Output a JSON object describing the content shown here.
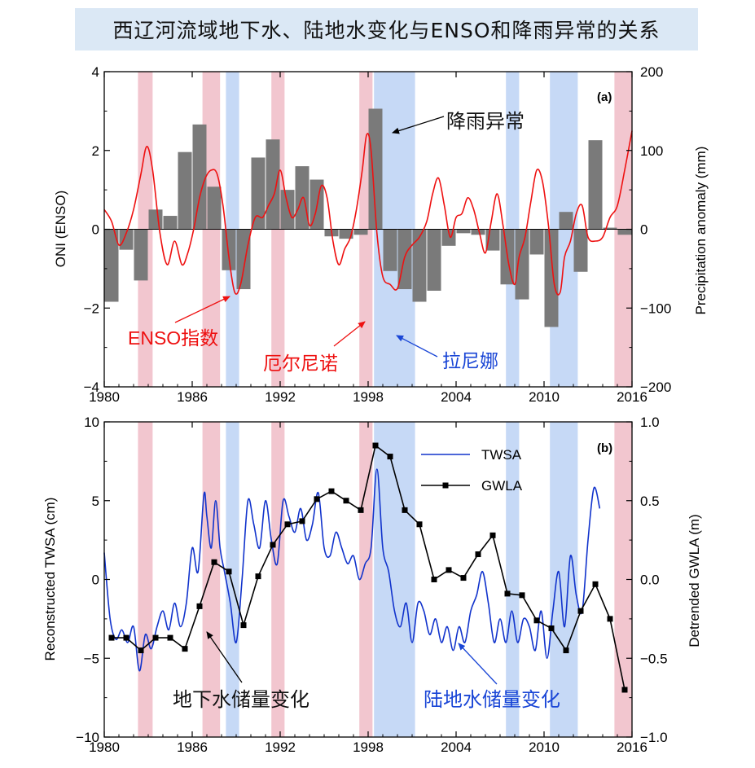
{
  "title": "西辽河流域地下水、陆地水变化与ENSO和降雨异常的关系",
  "colors": {
    "elnino": "#f2c6cf",
    "lanina": "#c6d9f6",
    "oni": "#ee1111",
    "precip": "#7a7a7a",
    "twsa": "#1133cc",
    "gwla": "#000000",
    "blue_text": "#1a46d6",
    "red_text": "#ee1111"
  },
  "shading": {
    "el_nino_periods": [
      [
        1982.3,
        1983.3
      ],
      [
        1986.7,
        1987.9
      ],
      [
        1991.4,
        1992.3
      ],
      [
        1997.4,
        1998.3
      ],
      [
        2014.8,
        2016.0
      ]
    ],
    "la_nina_periods": [
      [
        1988.3,
        1989.2
      ],
      [
        1998.4,
        2001.2
      ],
      [
        2007.4,
        2008.3
      ],
      [
        2010.4,
        2012.3
      ]
    ]
  },
  "chart_data": [
    {
      "type": "bar",
      "panel_label": "(a)",
      "ylabel_left": "ONI (ENSO)",
      "ylabel_right": "Precipitation anomaly (mm)",
      "xlim": [
        1980,
        2016
      ],
      "ylim_left": [
        -4,
        4
      ],
      "ylim_right": [
        -200,
        200
      ],
      "x_ticks": [
        "1980",
        "1986",
        "1992",
        "1998",
        "2004",
        "2010",
        "2016"
      ],
      "y_ticks_left": [
        "4",
        "2",
        "0",
        "−2",
        "−4"
      ],
      "y_ticks_right": [
        "200",
        "100",
        "0",
        "−100",
        "−200"
      ],
      "annotations": {
        "precip": "降雨异常",
        "oni": "ENSO指数",
        "elnino": "厄尔尼诺",
        "lanina": "拉尼娜"
      },
      "precip_years": [
        1980,
        1981,
        1982,
        1983,
        1984,
        1985,
        1986,
        1987,
        1988,
        1989,
        1990,
        1991,
        1992,
        1993,
        1994,
        1995,
        1996,
        1997,
        1998,
        1999,
        2000,
        2001,
        2002,
        2003,
        2004,
        2005,
        2006,
        2007,
        2008,
        2009,
        2010,
        2011,
        2012,
        2013,
        2014,
        2015
      ],
      "precip_values": [
        -92,
        -26,
        -65,
        25,
        17,
        98,
        133,
        54,
        -52,
        -76,
        91,
        114,
        50,
        80,
        63,
        -9,
        -12,
        -7,
        153,
        -53,
        -76,
        -92,
        -78,
        -21,
        -5,
        -7,
        -27,
        -70,
        -89,
        -32,
        -124,
        22,
        -54,
        113,
        2,
        -7
      ],
      "oni_x": [
        1980.0,
        1980.5,
        1981.0,
        1981.5,
        1982.0,
        1982.5,
        1982.9,
        1983.3,
        1983.8,
        1984.3,
        1984.8,
        1985.3,
        1985.7,
        1986.1,
        1986.5,
        1986.9,
        1987.3,
        1987.7,
        1988.1,
        1988.5,
        1988.9,
        1989.3,
        1989.8,
        1990.3,
        1990.8,
        1991.2,
        1991.6,
        1992.0,
        1992.4,
        1992.8,
        1993.2,
        1993.6,
        1994.0,
        1994.4,
        1994.8,
        1995.2,
        1995.6,
        1996.0,
        1996.4,
        1996.8,
        1997.2,
        1997.6,
        1997.9,
        1998.2,
        1998.6,
        1999.0,
        1999.5,
        2000.0,
        2000.5,
        2001.0,
        2001.5,
        2002.0,
        2002.4,
        2002.8,
        2003.2,
        2003.6,
        2004.0,
        2004.4,
        2004.8,
        2005.2,
        2005.6,
        2006.0,
        2006.4,
        2006.8,
        2007.2,
        2007.6,
        2008.0,
        2008.3,
        2008.7,
        2009.1,
        2009.5,
        2009.9,
        2010.3,
        2010.7,
        2011.1,
        2011.4,
        2011.8,
        2012.2,
        2012.6,
        2013.0,
        2013.5,
        2014.0,
        2014.5,
        2015.0,
        2015.5,
        2016.0
      ],
      "oni_values": [
        0.5,
        0.2,
        -0.4,
        -0.1,
        0.5,
        1.4,
        2.1,
        1.5,
        -0.1,
        -0.9,
        -0.3,
        -0.9,
        -0.6,
        0.0,
        0.8,
        1.3,
        1.5,
        1.4,
        0.6,
        -0.7,
        -1.6,
        -1.4,
        -0.4,
        0.3,
        0.3,
        0.6,
        0.9,
        1.5,
        0.8,
        0.3,
        0.5,
        0.8,
        0.1,
        0.4,
        1.1,
        0.8,
        -0.3,
        -0.9,
        -0.5,
        -0.2,
        0.5,
        1.5,
        2.4,
        2.0,
        -0.1,
        -1.2,
        -1.4,
        -1.5,
        -0.7,
        -0.4,
        -0.2,
        0.2,
        0.9,
        1.3,
        0.6,
        -0.2,
        0.3,
        0.4,
        0.8,
        0.5,
        -0.1,
        -0.6,
        0.2,
        0.9,
        0.1,
        -0.9,
        -1.4,
        -0.7,
        -0.2,
        0.7,
        1.5,
        1.2,
        0.1,
        -1.4,
        -1.6,
        -0.7,
        -0.3,
        0.4,
        0.6,
        -0.2,
        -0.3,
        -0.2,
        0.3,
        0.6,
        1.5,
        2.5
      ]
    },
    {
      "type": "line",
      "panel_label": "(b)",
      "ylabel_left": "Reconstructed TWSA (cm)",
      "ylabel_right": "Detrended GWLA (m)",
      "xlim": [
        1980,
        2016
      ],
      "ylim_left": [
        -10,
        10
      ],
      "ylim_right": [
        -1.0,
        1.0
      ],
      "x_ticks": [
        "1980",
        "1986",
        "1992",
        "1998",
        "2004",
        "2010",
        "2016"
      ],
      "y_ticks_left": [
        "10",
        "5",
        "0",
        "−5",
        "−10"
      ],
      "y_ticks_right": [
        "1.0",
        "0.5",
        "0.0",
        "−0.5",
        "−1.0"
      ],
      "legend": {
        "position": "top-right",
        "entries": [
          "TWSA",
          "GWLA"
        ]
      },
      "annotations": {
        "gwla": "地下水储量变化",
        "twsa": "陆地水储量变化"
      },
      "series": [
        {
          "name": "TWSA",
          "x": [
            1980.0,
            1980.4,
            1980.8,
            1981.2,
            1981.6,
            1982.0,
            1982.4,
            1982.8,
            1983.2,
            1983.6,
            1984.0,
            1984.4,
            1984.8,
            1985.2,
            1985.6,
            1986.0,
            1986.4,
            1986.8,
            1987.0,
            1987.3,
            1987.6,
            1987.9,
            1988.2,
            1988.6,
            1989.0,
            1989.4,
            1989.8,
            1990.2,
            1990.6,
            1991.0,
            1991.4,
            1991.8,
            1992.2,
            1992.6,
            1993.0,
            1993.4,
            1993.8,
            1994.2,
            1994.6,
            1995.0,
            1995.4,
            1995.8,
            1996.2,
            1996.6,
            1997.0,
            1997.4,
            1997.8,
            1998.2,
            1998.6,
            1999.0,
            1999.4,
            1999.8,
            2000.2,
            2000.6,
            2001.0,
            2001.4,
            2001.8,
            2002.2,
            2002.6,
            2003.0,
            2003.4,
            2003.8,
            2004.2,
            2004.6,
            2005.0,
            2005.4,
            2005.8,
            2006.2,
            2006.6,
            2007.0,
            2007.4,
            2007.8,
            2008.2,
            2008.6,
            2009.0,
            2009.4,
            2009.8,
            2010.2,
            2010.6,
            2011.0,
            2011.4,
            2011.8,
            2012.2,
            2012.6,
            2013.0,
            2013.4,
            2013.8
          ],
          "values": [
            1.7,
            -2.5,
            -3.8,
            -3.2,
            -4.0,
            -3.0,
            -5.8,
            -3.5,
            -4.4,
            -3.0,
            -2.0,
            -3.2,
            -1.5,
            -3.0,
            -1.5,
            2.0,
            0.5,
            5.4,
            4.0,
            2.0,
            5.0,
            2.0,
            0.5,
            -1.5,
            -4.0,
            0.0,
            5.0,
            3.5,
            2.0,
            5.0,
            2.5,
            1.0,
            5.0,
            4.0,
            3.0,
            4.5,
            2.5,
            3.5,
            5.5,
            2.0,
            1.5,
            3.0,
            2.0,
            1.0,
            1.5,
            0.0,
            1.0,
            2.0,
            7.0,
            2.0,
            0.5,
            -2.0,
            -3.0,
            -1.5,
            -4.0,
            -1.5,
            -2.0,
            -3.5,
            -2.5,
            -4.0,
            -3.0,
            -4.5,
            -3.0,
            -4.0,
            -2.0,
            -1.0,
            0.5,
            -1.5,
            -4.0,
            -2.5,
            -4.0,
            -2.0,
            -4.0,
            -2.5,
            -3.0,
            -4.5,
            -2.0,
            -5.0,
            -2.0,
            0.5,
            -3.0,
            1.5,
            -1.0,
            -2.0,
            2.5,
            5.8,
            4.5
          ]
        },
        {
          "name": "GWLA",
          "x": [
            1980.5,
            1981.5,
            1982.5,
            1983.5,
            1984.5,
            1985.5,
            1986.5,
            1987.5,
            1988.5,
            1989.5,
            1990.5,
            1991.5,
            1992.5,
            1993.5,
            1994.5,
            1995.5,
            1996.5,
            1997.5,
            1998.5,
            1999.5,
            2000.5,
            2001.5,
            2002.5,
            2003.5,
            2004.5,
            2005.5,
            2006.5,
            2007.5,
            2008.5,
            2009.5,
            2010.5,
            2011.5,
            2012.5,
            2013.5,
            2014.5,
            2015.5
          ],
          "values": [
            -0.37,
            -0.37,
            -0.45,
            -0.37,
            -0.37,
            -0.44,
            -0.17,
            0.11,
            0.05,
            -0.29,
            0.02,
            0.22,
            0.35,
            0.37,
            0.51,
            0.56,
            0.5,
            0.44,
            0.85,
            0.78,
            0.44,
            0.35,
            0.0,
            0.06,
            0.01,
            0.16,
            0.28,
            -0.09,
            -0.1,
            -0.26,
            -0.31,
            -0.45,
            -0.2,
            -0.03,
            -0.25,
            -0.7
          ]
        }
      ]
    }
  ]
}
